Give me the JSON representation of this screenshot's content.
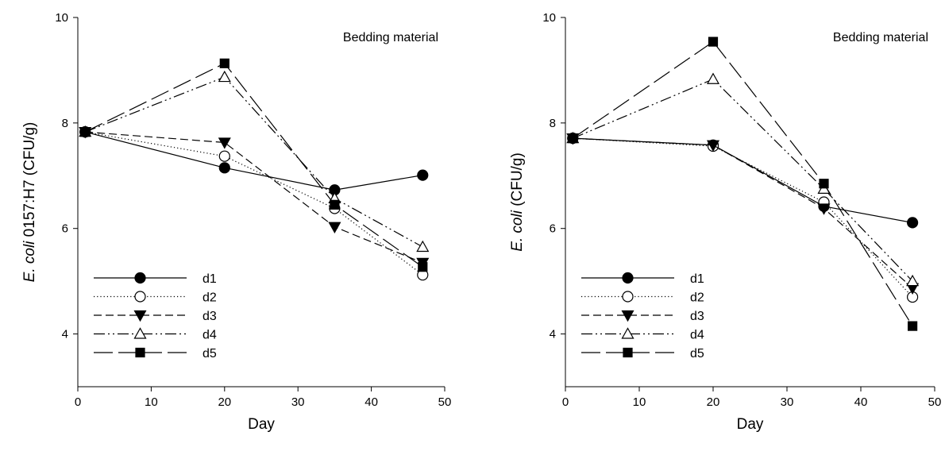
{
  "chart_data": [
    {
      "type": "line",
      "annotation": "Bedding material",
      "xlabel": "Day",
      "ylabel_italic": "E. coli",
      "ylabel_rest": " 0157:H7 (CFU/g)",
      "xlim": [
        0,
        50
      ],
      "ylim": [
        3,
        10
      ],
      "xticks": [
        "0",
        "10",
        "20",
        "30",
        "40",
        "50"
      ],
      "yticks": [
        "4",
        "6",
        "8",
        "10"
      ],
      "grid": false,
      "legend_position": "bottom-left",
      "x": [
        1,
        20,
        35,
        47
      ],
      "series": [
        {
          "name": "d1",
          "marker": "circle-filled",
          "dash": "solid",
          "values": [
            7.83,
            7.15,
            6.73,
            7.01
          ]
        },
        {
          "name": "d2",
          "marker": "circle-open",
          "dash": "dotted",
          "values": [
            7.83,
            7.37,
            6.38,
            5.12
          ]
        },
        {
          "name": "d3",
          "marker": "triangle-down-filled",
          "dash": "dashed",
          "values": [
            7.83,
            7.63,
            6.03,
            5.35
          ]
        },
        {
          "name": "d4",
          "marker": "triangle-up-open",
          "dash": "dashdotdot",
          "values": [
            7.83,
            8.87,
            6.57,
            5.65
          ]
        },
        {
          "name": "d5",
          "marker": "square-filled",
          "dash": "longdash",
          "values": [
            7.83,
            9.13,
            6.45,
            5.27
          ]
        }
      ]
    },
    {
      "type": "line",
      "annotation": "Bedding material",
      "xlabel": "Day",
      "ylabel_italic": "E. coli",
      "ylabel_rest": " (CFU/g)",
      "xlim": [
        0,
        50
      ],
      "ylim": [
        3,
        10
      ],
      "xticks": [
        "0",
        "10",
        "20",
        "30",
        "40",
        "50"
      ],
      "yticks": [
        "4",
        "6",
        "8",
        "10"
      ],
      "grid": false,
      "legend_position": "bottom-left",
      "x": [
        1,
        20,
        35,
        47
      ],
      "series": [
        {
          "name": "d1",
          "marker": "circle-filled",
          "dash": "solid",
          "values": [
            7.71,
            7.58,
            6.42,
            6.11
          ]
        },
        {
          "name": "d2",
          "marker": "circle-open",
          "dash": "dotted",
          "values": [
            7.71,
            7.56,
            6.5,
            4.7
          ]
        },
        {
          "name": "d3",
          "marker": "triangle-down-filled",
          "dash": "dashed",
          "values": [
            7.71,
            7.58,
            6.38,
            4.87
          ]
        },
        {
          "name": "d4",
          "marker": "triangle-up-open",
          "dash": "dashdotdot",
          "values": [
            7.71,
            8.83,
            6.75,
            5.0
          ]
        },
        {
          "name": "d5",
          "marker": "square-filled",
          "dash": "longdash",
          "values": [
            7.71,
            9.54,
            6.85,
            4.15
          ]
        }
      ]
    }
  ]
}
